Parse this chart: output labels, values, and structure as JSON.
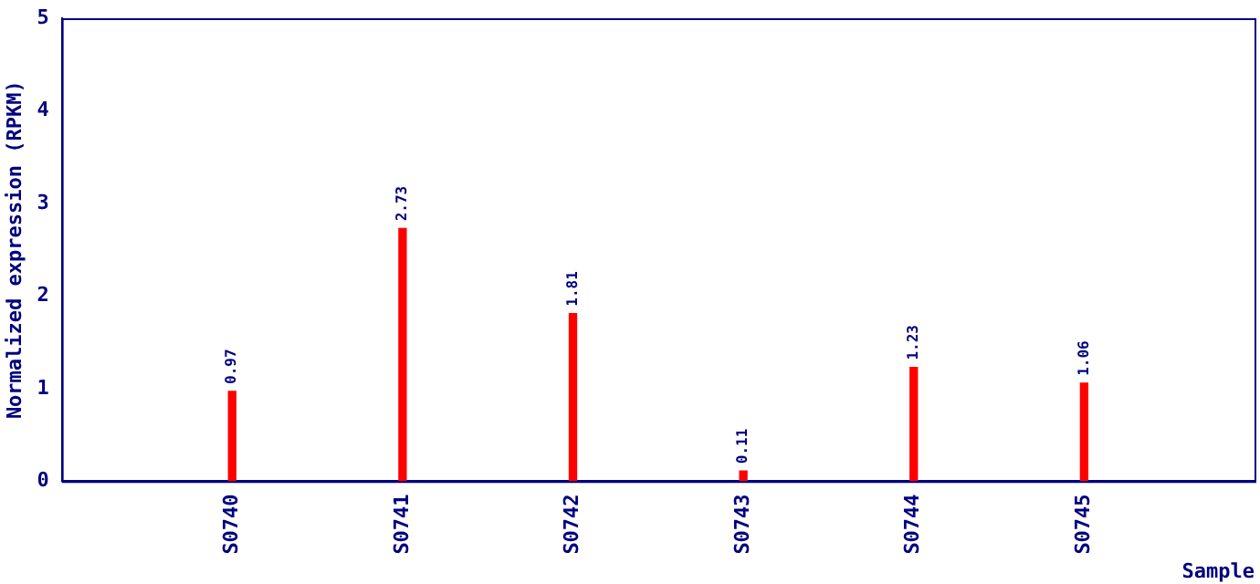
{
  "chart_data": {
    "type": "bar",
    "xlabel": "Sample",
    "ylabel": "Normalized expression (RPKM)",
    "categories": [
      "S0740",
      "S0741",
      "S0742",
      "S0743",
      "S0744",
      "S0745"
    ],
    "values": [
      0.97,
      2.73,
      1.81,
      0.11,
      1.23,
      1.06
    ],
    "color": "#ff0000",
    "ylim": [
      0,
      5
    ],
    "yticks": [
      0,
      1,
      2,
      3,
      4,
      5
    ],
    "grid": false,
    "legend": false,
    "data_labels": true
  }
}
